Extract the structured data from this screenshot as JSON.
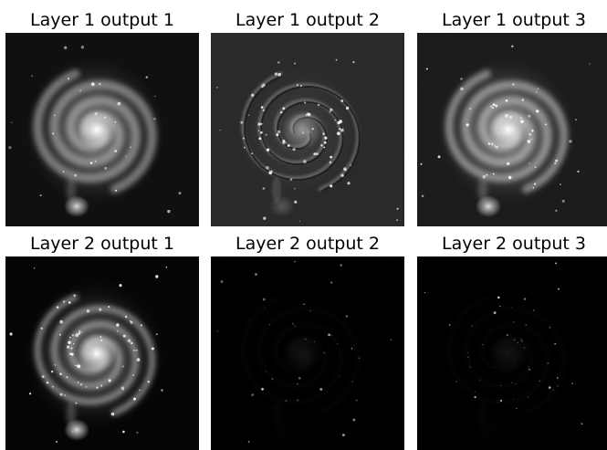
{
  "figure": {
    "panels": [
      {
        "title": "Layer 1 output 1",
        "style": "smooth-bright",
        "background": "#101010"
      },
      {
        "title": "Layer 1 output 2",
        "style": "edge-relief",
        "background": "#2a2a2a"
      },
      {
        "title": "Layer 1 output 3",
        "style": "embossed-bright",
        "background": "#1c1c1c"
      },
      {
        "title": "Layer 2 output 1",
        "style": "sharp-bright",
        "background": "#050505"
      },
      {
        "title": "Layer 2 output 2",
        "style": "sparse-dim",
        "background": "#000000"
      },
      {
        "title": "Layer 2 output 3",
        "style": "sparse-dim",
        "background": "#000000"
      }
    ]
  }
}
